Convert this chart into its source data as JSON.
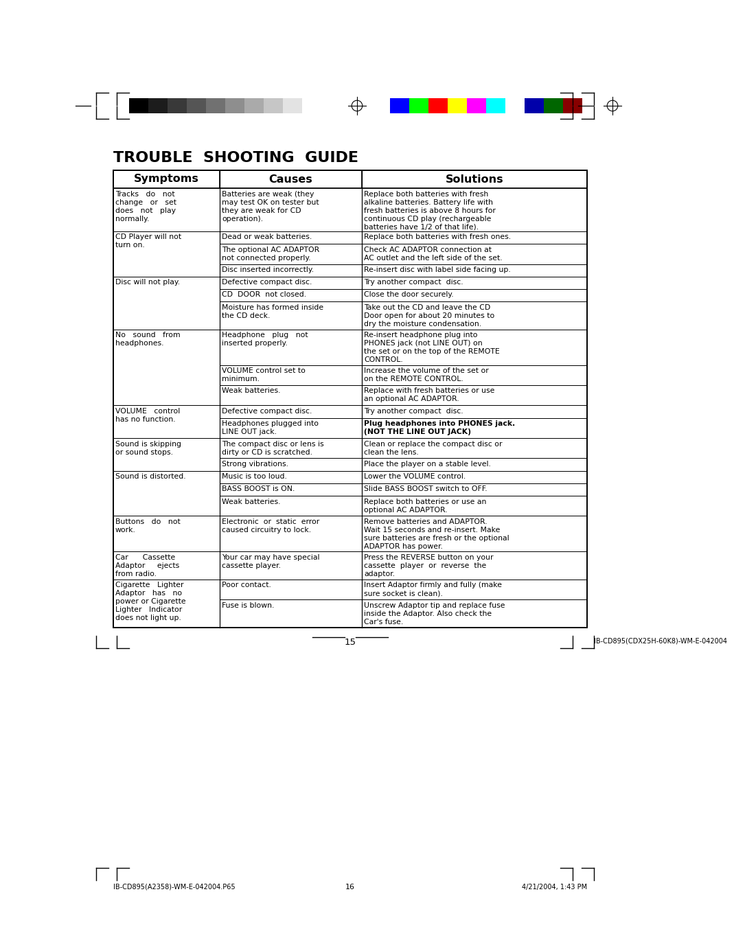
{
  "title": "TROUBLE  SHOOTING  GUIDE",
  "headers": [
    "Symptoms",
    "Causes",
    "Solutions"
  ],
  "rows": [
    {
      "symptom": "Tracks   do   not\nchange   or   set\ndoes   not   play\nnormally.",
      "cause": "Batteries are weak (they\nmay test OK on tester but\nthey are weak for CD\noperation).",
      "solution": "Replace both batteries with fresh\nalkaline batteries. Battery life with\nfresh batteries is above 8 hours for\ncontinuous CD play (rechargeable\nbatteries have 1/2 of that life).",
      "sym_rows": 4
    },
    {
      "symptom": "CD Player will not\nturn on.",
      "cause": "Dead or weak batteries.",
      "solution": "Replace both batteries with fresh ones.",
      "sym_rows": 2
    },
    {
      "symptom": "",
      "cause": "The optional AC ADAPTOR\nnot connected properly.",
      "solution": "Check AC ADAPTOR connection at\nAC outlet and the left side of the set.",
      "sym_rows": 0
    },
    {
      "symptom": "",
      "cause": "Disc inserted incorrectly.",
      "solution": "Re-insert disc with label side facing up.",
      "sym_rows": 0
    },
    {
      "symptom": "Disc will not play.",
      "cause": "Defective compact disc.",
      "solution": "Try another compact  disc.",
      "sym_rows": 6
    },
    {
      "symptom": "",
      "cause": "CD  DOOR  not closed.",
      "solution": "Close the door securely.",
      "sym_rows": 0
    },
    {
      "symptom": "",
      "cause": "Moisture has formed inside\nthe CD deck.",
      "solution": "Take out the CD and leave the CD\nDoor open for about 20 minutes to\ndry the moisture condensation.",
      "sym_rows": 0
    },
    {
      "symptom": "No   sound   from\nheadphones.",
      "cause": "Headphone   plug   not\ninserted properly.",
      "solution": "Re-insert headphone plug into\nPHONES jack (not LINE OUT) on\nthe set or on the top of the REMOTE\nCONTROL.",
      "sol_bold_words": [
        "PHONES",
        "not LINE OUT"
      ],
      "sym_rows": 5
    },
    {
      "symptom": "",
      "cause": "VOLUME control set to\nminimum.",
      "solution": "Increase the volume of the set or\non the REMOTE CONTROL.",
      "sym_rows": 0
    },
    {
      "symptom": "",
      "cause": "Weak batteries.",
      "solution": "Replace with fresh batteries or use\nan optional AC ADAPTOR.",
      "sym_rows": 0
    },
    {
      "symptom": "VOLUME   control\nhas no function.",
      "cause": "Defective compact disc.",
      "solution": "Try another compact  disc.",
      "sym_rows": 2
    },
    {
      "symptom": "",
      "cause": "Headphones plugged into\nLINE OUT jack.",
      "solution": "Plug headphones into PHONES jack.\n(NOT THE LINE OUT JACK)",
      "sol_bold": true,
      "sym_rows": 0
    },
    {
      "symptom": "Sound is skipping\nor sound stops.",
      "cause": "The compact disc or lens is\ndirty or CD is scratched.",
      "solution": "Clean or replace the compact disc or\nclean the lens.",
      "sym_rows": 3
    },
    {
      "symptom": "",
      "cause": "Strong vibrations.",
      "solution": "Place the player on a stable level.",
      "sym_rows": 0
    },
    {
      "symptom": "Sound is distorted.",
      "cause": "Music is too loud.",
      "solution": "Lower the VOLUME control.",
      "sym_rows": 4
    },
    {
      "symptom": "",
      "cause": "BASS BOOST is ON.",
      "solution": "Slide BASS BOOST switch to OFF.",
      "sym_rows": 0
    },
    {
      "symptom": "",
      "cause": "Weak batteries.",
      "solution": "Replace both batteries or use an\noptional AC ADAPTOR.",
      "sym_rows": 0
    },
    {
      "symptom": "Buttons   do   not\nwork.",
      "cause": "Electronic  or  static  error\ncaused circuitry to lock.",
      "solution": "Remove batteries and ADAPTOR.\nWait 15 seconds and re-insert. Make\nsure batteries are fresh or the optional\nADAPTOR has power.",
      "sym_rows": 2
    },
    {
      "symptom": "Car      Cassette\nAdaptor     ejects\nfrom radio.",
      "cause": "Your car may have special\ncassette player.",
      "solution": "Press the REVERSE button on your\ncassette  player  or  reverse  the\nadaptor.",
      "sym_rows": 3
    },
    {
      "symptom": "Cigarette   Lighter\nAdaptor   has   no\npower or Cigarette\nLighter   Indicator\ndoes not light up.",
      "cause": "Poor contact.",
      "solution": "Insert Adaptor firmly and fully (make\nsure socket is clean).",
      "sym_rows": 7
    },
    {
      "symptom": "",
      "cause": "Fuse is blown.",
      "solution": "Unscrew Adaptor tip and replace fuse\ninside the Adaptor. Also check the\nCar's fuse.",
      "sym_rows": 0
    }
  ],
  "page_num": "15",
  "page_right_note": "IB-CD895(CDX25H-60K8)-WM-E-042004",
  "footer_left": "IB-CD895(A2358)-WM-E-042004.P65",
  "footer_center": "16",
  "footer_right": "4/21/2004, 1:43 PM",
  "color_bar_left_colors": [
    "#000000",
    "#1c1c1c",
    "#393939",
    "#555555",
    "#717171",
    "#8e8e8e",
    "#aaaaaa",
    "#c6c6c6",
    "#e3e3e3",
    "#ffffff"
  ],
  "color_bar_right_colors": [
    "#0000ff",
    "#00ff00",
    "#ff0000",
    "#ffff00",
    "#ff00ff",
    "#00ffff",
    "#ffffff",
    "#0000aa",
    "#006600",
    "#880000"
  ],
  "bg_color": "#ffffff"
}
